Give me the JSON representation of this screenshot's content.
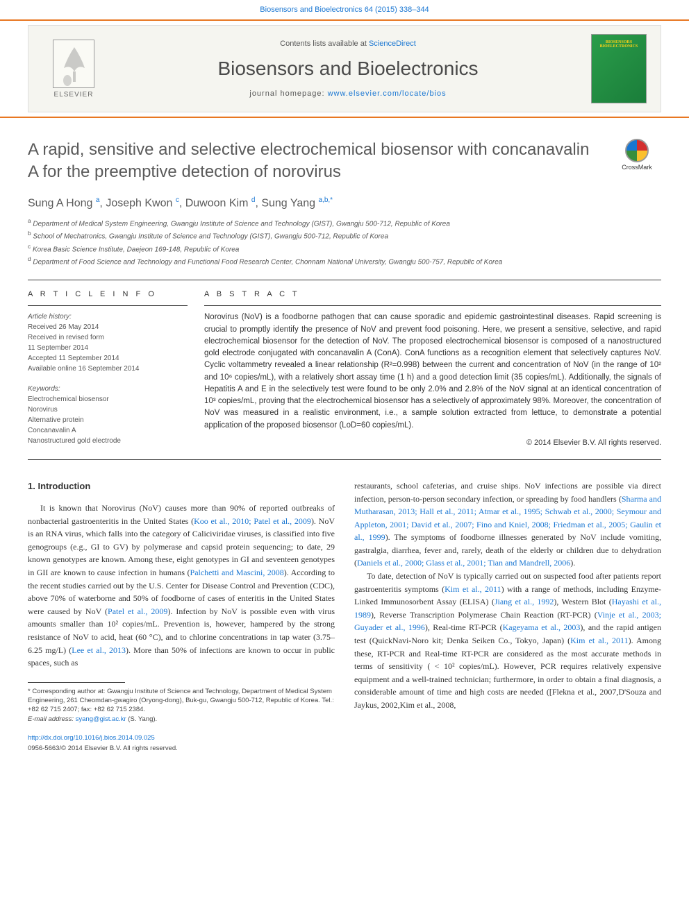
{
  "top_bar": {
    "journal_ref": "Biosensors and Bioelectronics 64 (2015) 338–344",
    "link_label": "Biosensors and Bioelectronics 64 (2015) 338–344"
  },
  "header": {
    "elsevier_label": "ELSEVIER",
    "contents_prefix": "Contents lists available at ",
    "contents_link": "ScienceDirect",
    "journal_title": "Biosensors and Bioelectronics",
    "homepage_prefix": "journal homepage: ",
    "homepage_link": "www.elsevier.com/locate/bios",
    "cover_text": "BIOSENSORS BIOELECTRONICS"
  },
  "article": {
    "title": "A rapid, sensitive and selective electrochemical biosensor with concanavalin A for the preemptive detection of norovirus",
    "crossmark_label": "CrossMark",
    "authors_html": "Sung A Hong <sup>a</sup>, Joseph Kwon <sup>c</sup>, Duwoon Kim <sup>d</sup>, Sung Yang <sup>a,b,*</sup>",
    "affiliations": [
      "a Department of Medical System Engineering, Gwangju Institute of Science and Technology (GIST), Gwangju 500-712, Republic of Korea",
      "b School of Mechatronics, Gwangju Institute of Science and Technology (GIST), Gwangju 500-712, Republic of Korea",
      "c Korea Basic Science Institute, Daejeon 169-148, Republic of Korea",
      "d Department of Food Science and Technology and Functional Food Research Center, Chonnam National University, Gwangju 500-757, Republic of Korea"
    ]
  },
  "info": {
    "heading": "A R T I C L E  I N F O",
    "history_label": "Article history:",
    "history": [
      "Received 26 May 2014",
      "Received in revised form",
      "11 September 2014",
      "Accepted 11 September 2014",
      "Available online 16 September 2014"
    ],
    "keywords_label": "Keywords:",
    "keywords": [
      "Electrochemical biosensor",
      "Norovirus",
      "Alternative protein",
      "Concanavalin A",
      "Nanostructured gold electrode"
    ]
  },
  "abstract": {
    "heading": "A B S T R A C T",
    "text": "Norovirus (NoV) is a foodborne pathogen that can cause sporadic and epidemic gastrointestinal diseases. Rapid screening is crucial to promptly identify the presence of NoV and prevent food poisoning. Here, we present a sensitive, selective, and rapid electrochemical biosensor for the detection of NoV. The proposed electrochemical biosensor is composed of a nanostructured gold electrode conjugated with concanavalin A (ConA). ConA functions as a recognition element that selectively captures NoV. Cyclic voltammetry revealed a linear relationship (R²=0.998) between the current and concentration of NoV (in the range of 10² and 10⁶ copies/mL), with a relatively short assay time (1 h) and a good detection limit (35 copies/mL). Additionally, the signals of Hepatitis A and E in the selectively test were found to be only 2.0% and 2.8% of the NoV signal at an identical concentration of 10³ copies/mL, proving that the electrochemical biosensor has a selectively of approximately 98%. Moreover, the concentration of NoV was measured in a realistic environment, i.e., a sample solution extracted from lettuce, to demonstrate a potential application of the proposed biosensor (LoD=60 copies/mL).",
    "copyright": "© 2014 Elsevier B.V. All rights reserved."
  },
  "body": {
    "section_heading": "1. Introduction",
    "col1_p1": "It is known that Norovirus (NoV) causes more than 90% of reported outbreaks of nonbacterial gastroenteritis in the United States (Koo et al., 2010; Patel et al., 2009). NoV is an RNA virus, which falls into the category of Caliciviridae viruses, is classified into five genogroups (e.g., GI to GV) by polymerase and capsid protein sequencing; to date, 29 known genotypes are known. Among these, eight genotypes in GI and seventeen genotypes in GII are known to cause infection in humans (Palchetti and Mascini, 2008). According to the recent studies carried out by the U.S. Center for Disease Control and Prevention (CDC), above 70% of waterborne and 50% of foodborne of cases of enteritis in the United States were caused by NoV (Patel et al., 2009). Infection by NoV is possible even with virus amounts smaller than 10² copies/mL. Prevention is, however, hampered by the strong resistance of NoV to acid, heat (60 °C), and to chlorine concentrations in tap water (3.75–6.25 mg/L) (Lee et al., 2013). More than 50% of infections are known to occur in public spaces, such as",
    "col2_p1": "restaurants, school cafeterias, and cruise ships. NoV infections are possible via direct infection, person-to-person secondary infection, or spreading by food handlers (Sharma and Mutharasan, 2013; Hall et al., 2011; Atmar et al., 1995; Schwab et al., 2000; Seymour and Appleton, 2001; David et al., 2007; Fino and Kniel, 2008; Friedman et al., 2005; Gaulin et al., 1999). The symptoms of foodborne illnesses generated by NoV include vomiting, gastralgia, diarrhea, fever and, rarely, death of the elderly or children due to dehydration (Daniels et al., 2000; Glass et al., 2001; Tian and Mandrell, 2006).",
    "col2_p2": "To date, detection of NoV is typically carried out on suspected food after patients report gastroenteritis symptoms (Kim et al., 2011) with a range of methods, including Enzyme-Linked Immunosorbent Assay (ELISA) (Jiang et al., 1992), Western Blot (Hayashi et al., 1989), Reverse Transcription Polymerase Chain Reaction (RT-PCR) (Vinje et al., 2003; Guyader et al., 1996), Real-time RT-PCR (Kageyama et al., 2003), and the rapid antigen test (QuickNavi-Noro kit; Denka Seiken Co., Tokyo, Japan) (Kim et al., 2011). Among these, RT-PCR and Real-time RT-PCR are considered as the most accurate methods in terms of sensitivity ( < 10² copies/mL). However, PCR requires relatively expensive equipment and a well-trained technician; furthermore, in order to obtain a final diagnosis, a considerable amount of time and high costs are needed ([Flekna et al., 2007,D'Souza and Jaykus, 2002,Kim et al., 2008,"
  },
  "footnote": {
    "corresponding": "* Corresponding author at: Gwangju Institute of Science and Technology, Department of Medical System Engineering, 261 Cheomdan-gwagiro (Oryong-dong), Buk-gu, Gwangju 500-712, Republic of Korea. Tel.: +82 62 715 2407; fax: +82 62 715 2384.",
    "email_label": "E-mail address: ",
    "email": "syang@gist.ac.kr",
    "email_suffix": " (S. Yang).",
    "doi": "http://dx.doi.org/10.1016/j.bios.2014.09.025",
    "issn_line": "0956-5663/© 2014 Elsevier B.V. All rights reserved."
  },
  "colors": {
    "orange_rule": "#e87722",
    "link_blue": "#1976d2",
    "header_bg": "#f5f5f0",
    "cover_green1": "#2a9d4a",
    "cover_green2": "#1a7d3a",
    "body_text": "#333333"
  }
}
